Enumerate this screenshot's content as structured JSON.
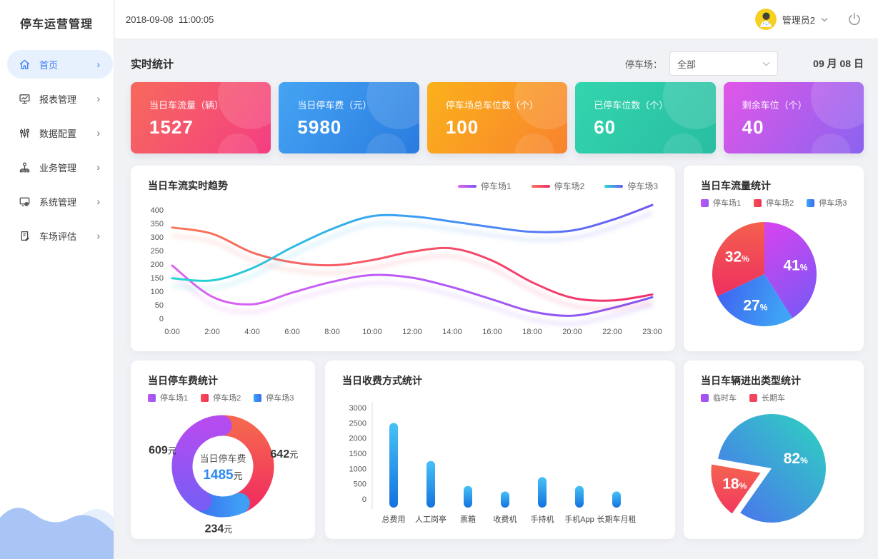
{
  "app": {
    "title": "停车运营管理",
    "datetime": "2018-09-08  11:00:05",
    "user": "管理员2"
  },
  "sidebar": {
    "items": [
      {
        "label": "首页",
        "icon": "home-icon",
        "active": true
      },
      {
        "label": "报表管理",
        "icon": "report-icon",
        "active": false
      },
      {
        "label": "数据配置",
        "icon": "sliders-icon",
        "active": false
      },
      {
        "label": "业务管理",
        "icon": "org-icon",
        "active": false
      },
      {
        "label": "系统管理",
        "icon": "system-icon",
        "active": false
      },
      {
        "label": "车场评估",
        "icon": "evaluation-icon",
        "active": false
      }
    ]
  },
  "toolbar": {
    "section_title": "实时统计",
    "filter_label": "停车场：",
    "filter_value": "全部",
    "date": "09 月 08 日"
  },
  "stat_cards": [
    {
      "label": "当日车流量（辆）",
      "value": "1527",
      "from": "#f66a5c",
      "to": "#f43e82"
    },
    {
      "label": "当日停车费（元）",
      "value": "5980",
      "from": "#45a4f3",
      "to": "#2a7cdf"
    },
    {
      "label": "停车场总车位数（个）",
      "value": "100",
      "from": "#fbb11b",
      "to": "#f8832e"
    },
    {
      "label": "已停车位数（个）",
      "value": "60",
      "from": "#33d5ae",
      "to": "#29bda2"
    },
    {
      "label": "剩余车位（个）",
      "value": "40",
      "from": "#e156e8",
      "to": "#8a63ef"
    }
  ],
  "chart_data": [
    {
      "type": "line",
      "title": "当日车流实时趋势",
      "x": [
        "0:00",
        "2:00",
        "4:00",
        "6:00",
        "8:00",
        "10:00",
        "12:00",
        "14:00",
        "16:00",
        "18:00",
        "20:00",
        "22:00",
        "23:00"
      ],
      "yticks": [
        0,
        50,
        100,
        150,
        200,
        250,
        300,
        350,
        400
      ],
      "ylim": [
        0,
        400
      ],
      "series": [
        {
          "name": "停车场1",
          "from": "#e263f2",
          "mid": "#b85cf4",
          "to": "#7d57f2",
          "values": [
            195,
            80,
            52,
            95,
            135,
            160,
            150,
            115,
            70,
            25,
            10,
            38,
            78
          ]
        },
        {
          "name": "停车场2",
          "from": "#f8775c",
          "mid": "#f5536a",
          "to": "#f22e6e",
          "values": [
            335,
            312,
            243,
            207,
            196,
            215,
            246,
            258,
            213,
            133,
            76,
            66,
            88
          ]
        },
        {
          "name": "停车场3",
          "from": "#25d8d0",
          "mid": "#3a9ef5",
          "to": "#6e58f5",
          "values": [
            148,
            140,
            185,
            262,
            330,
            377,
            376,
            357,
            336,
            319,
            324,
            363,
            418
          ]
        }
      ]
    },
    {
      "type": "pie",
      "title": "当日车流量统计",
      "legend": [
        {
          "name": "停车场1",
          "from": "#c653f0",
          "to": "#8e5cf3"
        },
        {
          "name": "停车场2",
          "from": "#f4504d",
          "to": "#f0315e"
        },
        {
          "name": "停车场3",
          "from": "#39a7f5",
          "to": "#3f6cf0"
        }
      ],
      "slices": [
        {
          "name": "停车场1",
          "pct": 41,
          "from": "#d943ee",
          "to": "#8456f5",
          "dir": [
            0,
            0,
            0.4,
            1
          ],
          "ld": 0.62
        },
        {
          "name": "停车场3",
          "pct": 27,
          "from": "#3f5ff0",
          "to": "#3fa4f5",
          "dir": [
            0,
            0,
            1,
            0.2
          ],
          "ld": 0.62
        },
        {
          "name": "停车场2",
          "pct": 32,
          "from": "#f4604d",
          "to": "#ee2f60",
          "dir": [
            0,
            0,
            0,
            1
          ],
          "ld": 0.62
        }
      ]
    },
    {
      "type": "donut",
      "title": "当日停车费统计",
      "legend": [
        {
          "name": "停车场1",
          "from": "#c653f0",
          "to": "#8e5cf3"
        },
        {
          "name": "停车场2",
          "from": "#f4504d",
          "to": "#f0315e"
        },
        {
          "name": "停车场3",
          "from": "#39a7f5",
          "to": "#3f6cf0"
        }
      ],
      "center_label": "当日停车费",
      "center_value": "1485",
      "unit": "元",
      "arcs": [
        {
          "name": "停车场2",
          "value": 642,
          "from": "#f4664f",
          "to": "#f22e5f",
          "dir": [
            0,
            0,
            0,
            1
          ]
        },
        {
          "name": "停车场3",
          "value": 234,
          "from": "#3b74f0",
          "to": "#3f9ef5",
          "dir": [
            0,
            0,
            1,
            0
          ]
        },
        {
          "name": "停车场1",
          "value": 609,
          "from": "#b44cf0",
          "to": "#7b5cf5",
          "dir": [
            0,
            0,
            0,
            1
          ]
        }
      ]
    },
    {
      "type": "bar",
      "title": "当日收费方式统计",
      "categories": [
        "总费用",
        "人工岗亭",
        "票箱",
        "收费机",
        "手持机",
        "手机App",
        "长期车月租"
      ],
      "values": [
        2500,
        1250,
        430,
        250,
        720,
        430,
        250
      ],
      "yticks": [
        0,
        500,
        1000,
        1500,
        2000,
        2500,
        3000
      ],
      "ylim": [
        0,
        3000
      ],
      "bar_from": "#47c2f5",
      "bar_to": "#1472e0"
    },
    {
      "type": "pie",
      "title": "当日车辆进出类型统计",
      "legend": [
        {
          "name": "临时车",
          "from": "#b44cf0",
          "to": "#8e5cf3"
        },
        {
          "name": "长期车",
          "from": "#f2455e",
          "to": "#f2455e"
        }
      ],
      "slices": [
        {
          "name": "临时车",
          "pct": 82,
          "from": "#2dd5bf",
          "to": "#4e6bf2",
          "dir": [
            1,
            0,
            0,
            1
          ],
          "start": 280,
          "ld": 0.48
        },
        {
          "name": "长期车",
          "pct": 18,
          "from": "#f4664f",
          "to": "#f23560",
          "dir": [
            0,
            0,
            0,
            1
          ],
          "start": 215,
          "ld": 0.58,
          "explode": 12,
          "gap": "#fff"
        }
      ]
    }
  ]
}
